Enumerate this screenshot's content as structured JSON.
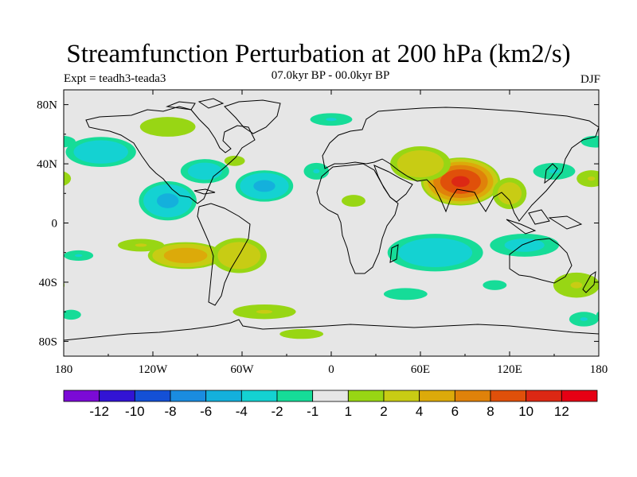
{
  "title": "Streamfunction Perturbation at 200 hPa (km2/s)",
  "left_label": "Expt = teadh3-teada3",
  "center_label": "07.0kyr BP - 00.0kyr BP",
  "right_label": "DJF",
  "chart_data": {
    "type": "heatmap",
    "projection": "cylindrical-equidistant",
    "x_range": [
      -180,
      180
    ],
    "y_range": [
      -90,
      90
    ],
    "x_ticks": [
      {
        "value": -180,
        "label": "180"
      },
      {
        "value": -120,
        "label": "120W"
      },
      {
        "value": -60,
        "label": "60W"
      },
      {
        "value": 0,
        "label": "0"
      },
      {
        "value": 60,
        "label": "60E"
      },
      {
        "value": 120,
        "label": "120E"
      },
      {
        "value": 180,
        "label": "180"
      }
    ],
    "y_ticks": [
      {
        "value": 80,
        "label": "80N"
      },
      {
        "value": 40,
        "label": "40N"
      },
      {
        "value": 0,
        "label": "0"
      },
      {
        "value": -40,
        "label": "40S"
      },
      {
        "value": -80,
        "label": "80S"
      }
    ],
    "levels": [
      -12,
      -10,
      -8,
      -6,
      -4,
      -2,
      -1,
      1,
      2,
      4,
      6,
      8,
      10,
      12
    ],
    "colorbar_labels": [
      "-12",
      "-10",
      "-8",
      "-6",
      "-4",
      "-2",
      "-1",
      "1",
      "2",
      "4",
      "6",
      "8",
      "10",
      "12"
    ],
    "colors": [
      "#7b0ad6",
      "#3214d4",
      "#1450d6",
      "#1a8ce0",
      "#14b0dc",
      "#14d2d2",
      "#16dc98",
      "#e6e6e6",
      "#98d614",
      "#c8cc14",
      "#dcaa0a",
      "#e0820a",
      "#e0500a",
      "#dc2814",
      "#e60014"
    ],
    "anomalies": [
      {
        "lon": 87,
        "lat": 28,
        "rlon": 28,
        "rlat": 17,
        "value": 10.5
      },
      {
        "lon": 60,
        "lat": 40,
        "rlon": 24,
        "rlat": 14,
        "value": 3.5
      },
      {
        "lon": 120,
        "lat": 20,
        "rlon": 14,
        "rlat": 13,
        "value": 3.0
      },
      {
        "lon": 150,
        "lat": 35,
        "rlon": 20,
        "rlat": 8,
        "value": -2.0
      },
      {
        "lon": -98,
        "lat": -22,
        "rlon": 28,
        "rlat": 10,
        "value": 5.5
      },
      {
        "lon": -62,
        "lat": -22,
        "rlon": 22,
        "rlat": 14,
        "value": 3.5
      },
      {
        "lon": -128,
        "lat": -15,
        "rlon": 22,
        "rlat": 6,
        "value": 2.0
      },
      {
        "lon": -170,
        "lat": -22,
        "rlon": 14,
        "rlat": 5,
        "value": -2.0
      },
      {
        "lon": -45,
        "lat": -60,
        "rlon": 30,
        "rlat": 7,
        "value": 2.0
      },
      {
        "lon": -20,
        "lat": -75,
        "rlon": 22,
        "rlat": 5,
        "value": 1.8
      },
      {
        "lon": -110,
        "lat": 15,
        "rlon": 22,
        "rlat": 15,
        "value": -4.5
      },
      {
        "lon": -45,
        "lat": 25,
        "rlon": 22,
        "rlat": 12,
        "value": -4.5
      },
      {
        "lon": -85,
        "lat": 35,
        "rlon": 20,
        "rlat": 10,
        "value": -3.0
      },
      {
        "lon": -155,
        "lat": 48,
        "rlon": 28,
        "rlat": 12,
        "value": -3.5
      },
      {
        "lon": -10,
        "lat": 35,
        "rlon": 12,
        "rlat": 8,
        "value": -2.0
      },
      {
        "lon": -65,
        "lat": 42,
        "rlon": 12,
        "rlat": 6,
        "value": 1.5
      },
      {
        "lon": -110,
        "lat": 65,
        "rlon": 28,
        "rlat": 10,
        "value": 1.8
      },
      {
        "lon": 0,
        "lat": 70,
        "rlon": 20,
        "rlat": 6,
        "value": -2.0
      },
      {
        "lon": 175,
        "lat": 30,
        "rlon": 14,
        "rlat": 8,
        "value": 2.0
      },
      {
        "lon": 15,
        "lat": 15,
        "rlon": 12,
        "rlat": 6,
        "value": 1.8
      },
      {
        "lon": 70,
        "lat": -20,
        "rlon": 38,
        "rlat": 15,
        "value": -3.5
      },
      {
        "lon": 130,
        "lat": -15,
        "rlon": 30,
        "rlat": 10,
        "value": -2.5
      },
      {
        "lon": 50,
        "lat": -48,
        "rlon": 22,
        "rlat": 6,
        "value": -1.8
      },
      {
        "lon": 110,
        "lat": -42,
        "rlon": 12,
        "rlat": 5,
        "value": -1.8
      },
      {
        "lon": 165,
        "lat": -42,
        "rlon": 22,
        "rlat": 12,
        "value": 2.0
      },
      {
        "lon": 170,
        "lat": -65,
        "rlon": 14,
        "rlat": 7,
        "value": -2.0
      },
      {
        "lon": -175,
        "lat": -62,
        "rlon": 10,
        "rlat": 5,
        "value": -1.8
      },
      {
        "lon": 178,
        "lat": 55,
        "rlon": 15,
        "rlat": 6,
        "value": -1.8
      }
    ]
  }
}
